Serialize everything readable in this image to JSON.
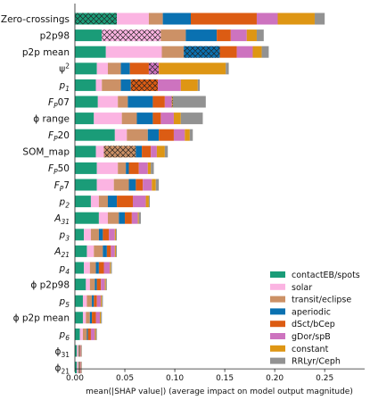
{
  "chart_data": {
    "type": "bar",
    "orientation": "horizontal",
    "stacked": true,
    "xlabel": "mean(|SHAP value|) (average impact on model output magnitude)",
    "xlim": [
      0,
      0.29
    ],
    "xticks": [
      0.0,
      0.05,
      0.1,
      0.15,
      0.2,
      0.25
    ],
    "xtick_labels": [
      "0.00",
      "0.05",
      "0.10",
      "0.15",
      "0.20",
      "0.25"
    ],
    "grid": false,
    "legend_position": "lower-right",
    "categories": [
      {
        "label": "Zero-crossings",
        "sub": ""
      },
      {
        "label": "p2p98",
        "sub": ""
      },
      {
        "label": "p2p mean",
        "sub": ""
      },
      {
        "label": "ψ",
        "sub": "",
        "sup": "2"
      },
      {
        "label": "p",
        "sub": "1",
        "italic": true
      },
      {
        "label": "F",
        "sub": "P",
        "tail": "07",
        "italic": true
      },
      {
        "label": "ϕ range",
        "sub": ""
      },
      {
        "label": "F",
        "sub": "P",
        "tail": "20",
        "italic": true
      },
      {
        "label": "SOM_map",
        "sub": ""
      },
      {
        "label": "F",
        "sub": "P",
        "tail": "50",
        "italic": true
      },
      {
        "label": "F",
        "sub": "P",
        "tail": "7",
        "italic": true
      },
      {
        "label": "p",
        "sub": "2",
        "italic": true
      },
      {
        "label": "A",
        "sub": "31",
        "italic": true
      },
      {
        "label": "p",
        "sub": "3",
        "italic": true
      },
      {
        "label": "A",
        "sub": "21",
        "italic": true
      },
      {
        "label": "p",
        "sub": "4",
        "italic": true
      },
      {
        "label": "ϕ p2p98",
        "sub": ""
      },
      {
        "label": "p",
        "sub": "5",
        "italic": true
      },
      {
        "label": "ϕ p2p mean",
        "sub": ""
      },
      {
        "label": "p",
        "sub": "6",
        "italic": true
      },
      {
        "label": "ϕ",
        "sub": "31"
      },
      {
        "label": "ϕ",
        "sub": "21"
      }
    ],
    "series": [
      {
        "name": "contactEB/spots",
        "color": "#1a9c78",
        "values": [
          0.042,
          0.027,
          0.031,
          0.022,
          0.021,
          0.023,
          0.019,
          0.04,
          0.021,
          0.022,
          0.022,
          0.016,
          0.024,
          0.009,
          0.012,
          0.009,
          0.011,
          0.008,
          0.008,
          0.005,
          0.002,
          0.002
        ],
        "hatched": [
          0
        ]
      },
      {
        "name": "solar",
        "color": "#fbb4e2",
        "values": [
          0.032,
          0.059,
          0.056,
          0.011,
          0.006,
          0.02,
          0.028,
          0.012,
          0.008,
          0.021,
          0.017,
          0.008,
          0.009,
          0.007,
          0.007,
          0.006,
          0.004,
          0.004,
          0.003,
          0.003,
          0.0012,
          0.0012
        ],
        "hatched": [
          1
        ]
      },
      {
        "name": "transit/eclipse",
        "color": "#cc9166",
        "values": [
          0.014,
          0.025,
          0.022,
          0.013,
          0.019,
          0.01,
          0.015,
          0.021,
          0.032,
          0.008,
          0.015,
          0.009,
          0.011,
          0.008,
          0.009,
          0.006,
          0.005,
          0.005,
          0.004,
          0.004,
          0.001,
          0.001
        ],
        "hatched": [
          8
        ]
      },
      {
        "name": "aperiodic",
        "color": "#0a71b1",
        "values": [
          0.028,
          0.031,
          0.036,
          0.009,
          0.01,
          0.025,
          0.016,
          0.011,
          0.006,
          0.003,
          0.007,
          0.009,
          0.006,
          0.004,
          0.004,
          0.003,
          0.002,
          0.002,
          0.002,
          0.001,
          0.0006,
          0.0006
        ],
        "hatched": [
          2
        ]
      },
      {
        "name": "dSct/bCep",
        "color": "#dc5c13",
        "values": [
          0.066,
          0.014,
          0.017,
          0.019,
          0.027,
          0.012,
          0.008,
          0.015,
          0.009,
          0.01,
          0.007,
          0.016,
          0.007,
          0.006,
          0.004,
          0.005,
          0.004,
          0.003,
          0.004,
          0.003,
          0.0006,
          0.0006
        ],
        "hatched": [
          4
        ]
      },
      {
        "name": "gDor/spB",
        "color": "#cd73bf",
        "values": [
          0.021,
          0.016,
          0.016,
          0.01,
          0.023,
          0.007,
          0.013,
          0.011,
          0.006,
          0.009,
          0.009,
          0.013,
          0.006,
          0.006,
          0.004,
          0.006,
          0.004,
          0.004,
          0.004,
          0.004,
          0.0006,
          0.0006
        ],
        "hatched": [
          3
        ]
      },
      {
        "name": "constant",
        "color": "#de9614",
        "values": [
          0.037,
          0.01,
          0.009,
          0.067,
          0.017,
          0.001,
          0.007,
          0.005,
          0.008,
          0.003,
          0.004,
          0.003,
          0.001,
          0.001,
          0.001,
          0.001,
          0.001,
          0.001,
          0.001,
          0.001,
          0.0005,
          0.0005
        ],
        "hatched": [
          5
        ]
      },
      {
        "name": "RRLyr/Ceph",
        "color": "#929292",
        "values": [
          0.01,
          0.007,
          0.007,
          0.003,
          0.002,
          0.033,
          0.022,
          0.003,
          0.003,
          0.003,
          0.003,
          0.001,
          0.002,
          0.001,
          0.001,
          0.001,
          0.001,
          0.001,
          0.001,
          0.001,
          0.0005,
          0.0005
        ],
        "hatched": []
      }
    ]
  }
}
